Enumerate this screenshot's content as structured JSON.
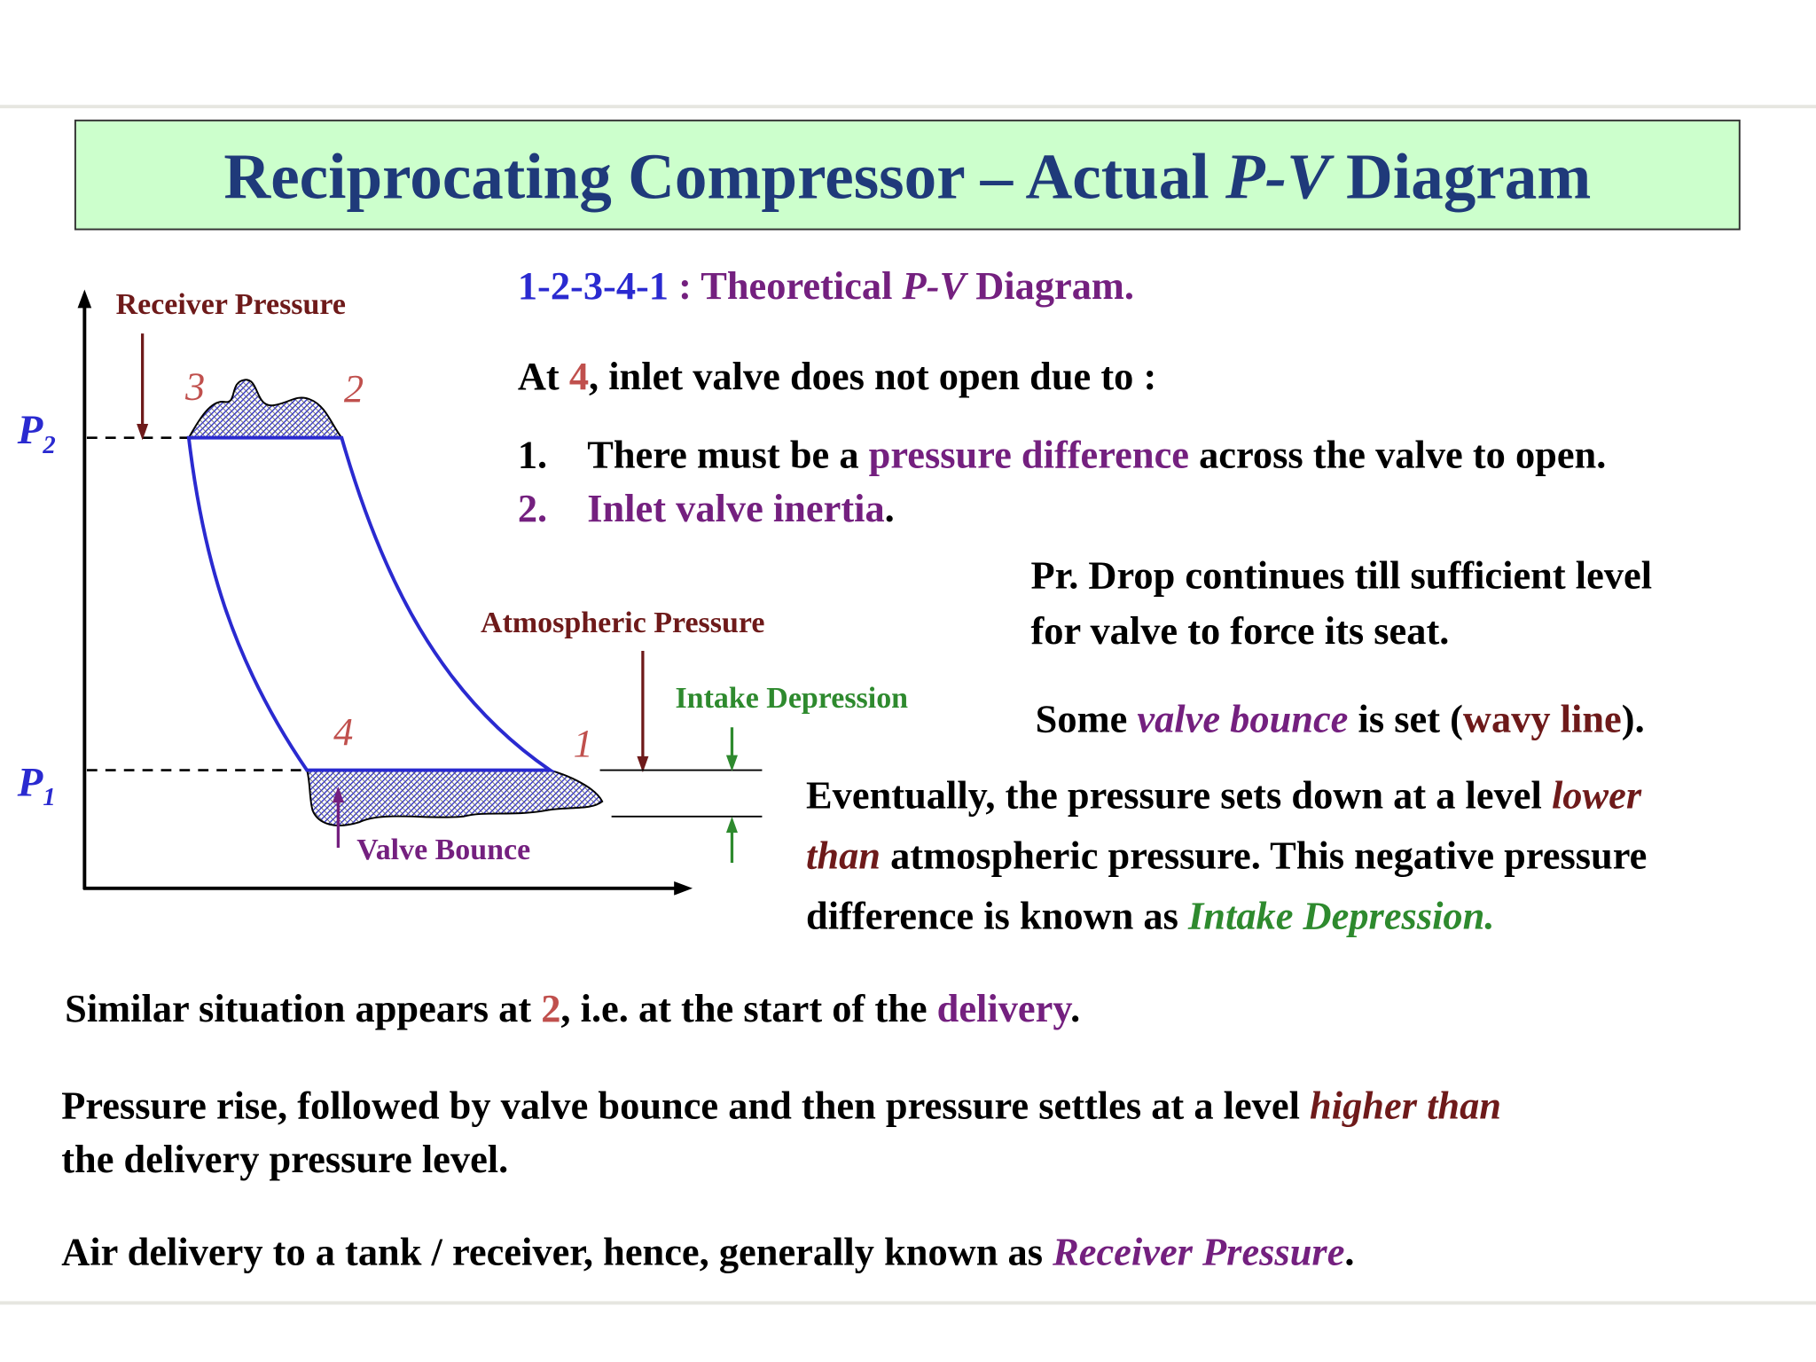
{
  "title": [
    "Reciprocating Compressor – Actual ",
    "P-V",
    " Diagram"
  ],
  "diagram": {
    "receiver_pressure": "Receiver Pressure",
    "atmospheric_pressure": "Atmospheric Pressure",
    "intake_depression": "Intake Depression",
    "valve_bounce": "Valve Bounce",
    "points": [
      "1",
      "2",
      "3",
      "4"
    ],
    "p2": [
      "P",
      "2"
    ],
    "p1": [
      "P",
      "1"
    ]
  },
  "theory": [
    "1-2-3-4-1",
    " : Theoretical ",
    "P-V",
    " Diagram."
  ],
  "cause": {
    "intro": [
      "At ",
      "4",
      ", inlet valve does not open due to :"
    ],
    "items": [
      {
        "number": "1.",
        "text": [
          "There must be a ",
          "pressure difference",
          " across the valve to open."
        ]
      },
      {
        "number": "2.",
        "text": [
          "Inlet valve inertia",
          "."
        ]
      }
    ]
  },
  "pr_drop": [
    "Pr. Drop continues till sufficient level",
    "for valve to force its seat."
  ],
  "bounce": [
    "Some ",
    "valve bounce",
    " is set (",
    "wavy line",
    ")."
  ],
  "eventually": [
    [
      "Eventually, the pressure sets down at a level ",
      "lower"
    ],
    [
      "than",
      " atmospheric pressure. This negative pressure"
    ],
    [
      "difference is known as ",
      "Intake Depression."
    ]
  ],
  "similar": [
    "Similar situation appears at ",
    "2",
    ", i.e. at the start of the ",
    "delivery",
    "."
  ],
  "rise": [
    [
      "Pressure rise, followed by valve bounce and then pressure settles at a level ",
      "higher than"
    ],
    [
      "the delivery pressure level."
    ]
  ],
  "receiver": [
    "Air delivery to a tank / receiver, hence, generally known as ",
    "Receiver Pressure",
    "."
  ]
}
